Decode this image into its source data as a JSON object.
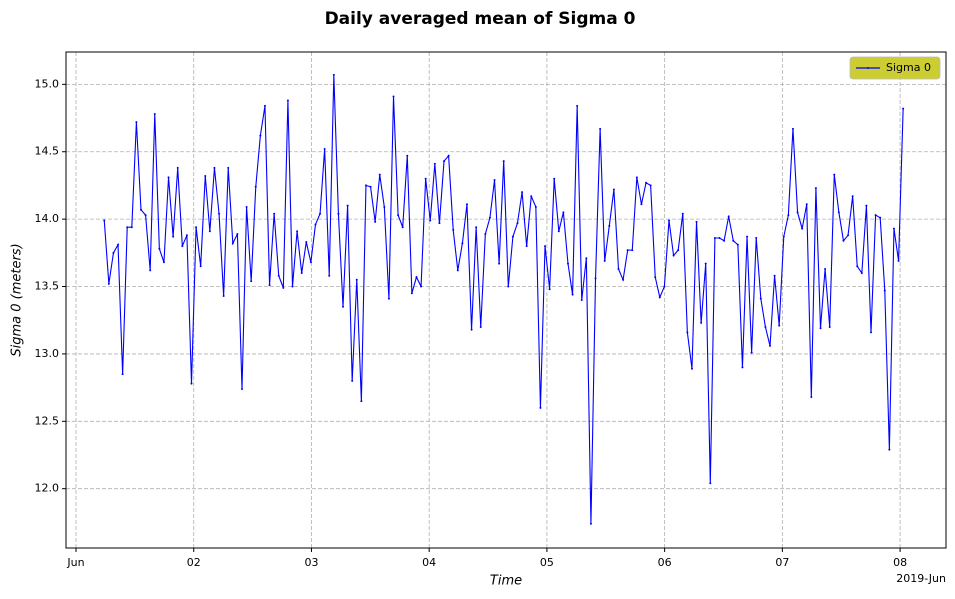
{
  "chart_data": {
    "type": "line",
    "title": "Daily averaged mean of Sigma 0",
    "x_label": "Time",
    "y_label": "Sigma 0 (meters)",
    "x_offset_label": "2019-Jun",
    "x": [
      1.24,
      1.279,
      1.318,
      1.357,
      1.396,
      1.435,
      1.474,
      1.513,
      1.552,
      1.591,
      1.63,
      1.669,
      1.708,
      1.747,
      1.786,
      1.825,
      1.864,
      1.903,
      1.942,
      1.981,
      2.02,
      2.059,
      2.098,
      2.137,
      2.176,
      2.215,
      2.254,
      2.293,
      2.332,
      2.371,
      2.41,
      2.449,
      2.488,
      2.527,
      2.566,
      2.605,
      2.644,
      2.683,
      2.722,
      2.761,
      2.8,
      2.839,
      2.878,
      2.917,
      2.956,
      2.995,
      3.034,
      3.073,
      3.112,
      3.151,
      3.19,
      3.229,
      3.268,
      3.307,
      3.346,
      3.385,
      3.424,
      3.463,
      3.502,
      3.541,
      3.58,
      3.619,
      3.658,
      3.697,
      3.736,
      3.775,
      3.814,
      3.853,
      3.892,
      3.931,
      3.97,
      4.009,
      4.048,
      4.087,
      4.126,
      4.165,
      4.204,
      4.243,
      4.282,
      4.321,
      4.36,
      4.399,
      4.438,
      4.477,
      4.516,
      4.555,
      4.594,
      4.633,
      4.672,
      4.711,
      4.75,
      4.789,
      4.828,
      4.867,
      4.906,
      4.945,
      4.984,
      5.023,
      5.062,
      5.101,
      5.14,
      5.179,
      5.218,
      5.257,
      5.296,
      5.335,
      5.374,
      5.413,
      5.452,
      5.491,
      5.53,
      5.569,
      5.608,
      5.647,
      5.686,
      5.725,
      5.764,
      5.803,
      5.842,
      5.881,
      5.92,
      5.959,
      5.998,
      6.037,
      6.076,
      6.115,
      6.154,
      6.193,
      6.232,
      6.271,
      6.31,
      6.349,
      6.388,
      6.427,
      6.466,
      6.505,
      6.544,
      6.583,
      6.622,
      6.661,
      6.7,
      6.739,
      6.778,
      6.817,
      6.856,
      6.895,
      6.934,
      6.973,
      7.012,
      7.051,
      7.09,
      7.129,
      7.168,
      7.207,
      7.246,
      7.285,
      7.324,
      7.363,
      7.402,
      7.441,
      7.48,
      7.519,
      7.558,
      7.597,
      7.636,
      7.675,
      7.714,
      7.753,
      7.792,
      7.831,
      7.87,
      7.909,
      7.948,
      7.987,
      8.026
    ],
    "series": [
      {
        "name": "Sigma 0",
        "color": "#0000ff",
        "values": [
          13.99,
          13.52,
          13.75,
          13.81,
          12.85,
          13.94,
          13.94,
          14.72,
          14.07,
          14.03,
          13.62,
          14.78,
          13.78,
          13.68,
          14.31,
          13.87,
          14.38,
          13.8,
          13.88,
          12.78,
          13.94,
          13.65,
          14.32,
          13.91,
          14.38,
          14.04,
          13.43,
          14.38,
          13.82,
          13.89,
          12.74,
          14.09,
          13.54,
          14.24,
          14.62,
          14.84,
          13.51,
          14.04,
          13.58,
          13.49,
          14.88,
          13.5,
          13.91,
          13.6,
          13.83,
          13.68,
          13.96,
          14.04,
          14.52,
          13.58,
          15.07,
          14.04,
          13.35,
          14.1,
          12.8,
          13.55,
          12.65,
          14.25,
          14.24,
          13.98,
          14.33,
          14.09,
          13.41,
          14.91,
          14.03,
          13.94,
          14.47,
          13.45,
          13.57,
          13.5,
          14.3,
          13.99,
          14.41,
          13.97,
          14.43,
          14.47,
          13.92,
          13.62,
          13.82,
          14.11,
          13.18,
          13.94,
          13.2,
          13.89,
          14.01,
          14.29,
          13.67,
          14.43,
          13.5,
          13.87,
          13.97,
          14.2,
          13.8,
          14.17,
          14.09,
          12.6,
          13.8,
          13.48,
          14.3,
          13.91,
          14.05,
          13.67,
          13.44,
          14.84,
          13.4,
          13.71,
          11.74,
          13.56,
          14.67,
          13.69,
          13.95,
          14.22,
          13.63,
          13.55,
          13.77,
          13.77,
          14.31,
          14.11,
          14.27,
          14.25,
          13.57,
          13.42,
          13.5,
          13.99,
          13.73,
          13.77,
          14.04,
          13.16,
          12.89,
          13.98,
          13.23,
          13.67,
          12.04,
          13.86,
          13.86,
          13.84,
          14.02,
          13.84,
          13.81,
          12.9,
          13.87,
          13.01,
          13.86,
          13.41,
          13.2,
          13.06,
          13.58,
          13.21,
          13.87,
          14.03,
          14.67,
          14.05,
          13.93,
          14.11,
          12.68,
          14.23,
          13.19,
          13.63,
          13.2,
          14.33,
          14.05,
          13.84,
          13.88,
          14.17,
          13.65,
          13.6,
          14.1,
          13.16,
          14.03,
          14.01,
          13.47,
          12.29,
          13.93,
          13.69,
          14.82
        ]
      }
    ],
    "xlim": [
      0.915,
      8.39
    ],
    "xticks": [
      {
        "value": 1,
        "label": "Jun"
      },
      {
        "value": 2,
        "label": "02"
      },
      {
        "value": 3,
        "label": "03"
      },
      {
        "value": 4,
        "label": "04"
      },
      {
        "value": 5,
        "label": "05"
      },
      {
        "value": 6,
        "label": "06"
      },
      {
        "value": 7,
        "label": "07"
      },
      {
        "value": 8,
        "label": "08"
      }
    ],
    "ylim": [
      11.56,
      15.24
    ],
    "yticks": [
      {
        "value": 12,
        "label": "12.0"
      },
      {
        "value": 12.5,
        "label": "12.5"
      },
      {
        "value": 13,
        "label": "13.0"
      },
      {
        "value": 13.5,
        "label": "13.5"
      },
      {
        "value": 14,
        "label": "14.0"
      },
      {
        "value": 14.5,
        "label": "14.5"
      },
      {
        "value": 15,
        "label": "15.0"
      }
    ],
    "grid": true,
    "legend_position": "upper-right",
    "legend_color": "#cccc33",
    "label_color": "#008000"
  }
}
